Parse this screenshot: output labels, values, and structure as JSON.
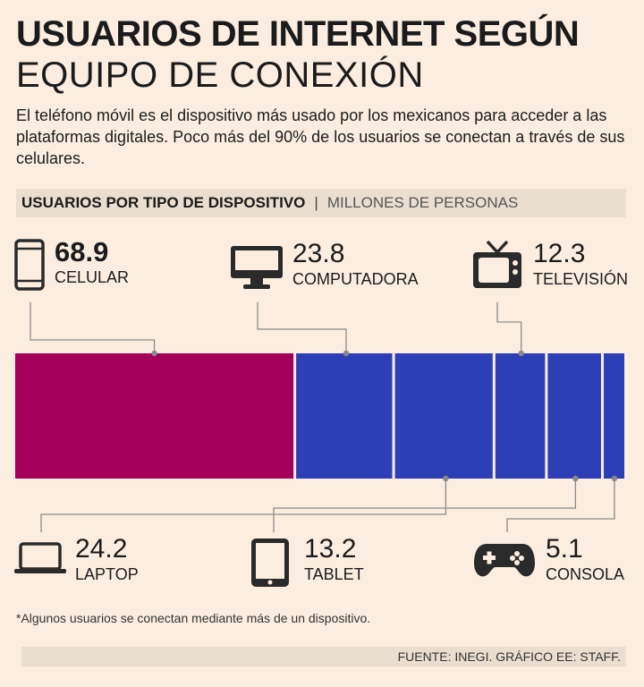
{
  "header": {
    "title_bold": "USUARIOS DE INTERNET SEGÚN",
    "title_light": "EQUIPO DE CONEXIÓN",
    "intro": "El teléfono móvil es el dispositivo más usado por los mexicanos para acceder a las plataformas digitales. Poco más del 90% de los usuarios se conectan a través de sus celulares."
  },
  "subheader": {
    "label": "USUARIOS POR TIPO DE DISPOSITIVO",
    "separator": "|",
    "unit": "MILLONES DE PERSONAS"
  },
  "colors": {
    "primary": "#a3005c",
    "secondary": "#2d3fb7",
    "background": "#fbeee0",
    "leader": "#8a8a8a",
    "icon": "#2a2a2a"
  },
  "chart_data": {
    "type": "bar",
    "orientation": "horizontal-stacked",
    "title": "Usuarios por tipo de dispositivo",
    "unit": "Millones de personas",
    "categories": [
      "CELULAR",
      "COMPUTADORA",
      "LAPTOP",
      "TELEVISIÓN",
      "TABLET",
      "CONSOLA"
    ],
    "values": [
      68.9,
      23.8,
      24.2,
      12.3,
      13.2,
      5.1
    ],
    "display_values": [
      "68.9",
      "23.8",
      "24.2",
      "12.3",
      "13.2",
      "5.1"
    ],
    "icons": [
      "phone-icon",
      "monitor-icon",
      "laptop-icon",
      "tv-icon",
      "tablet-icon",
      "gamepad-icon"
    ],
    "label_side": [
      "top",
      "top",
      "bottom",
      "top",
      "bottom",
      "bottom"
    ],
    "highlight": "CELULAR"
  },
  "footnote": "*Algunos usuarios se conectan mediante más de un dispositivo.",
  "source": "FUENTE: INEGI. GRÁFICO EE: STAFF."
}
